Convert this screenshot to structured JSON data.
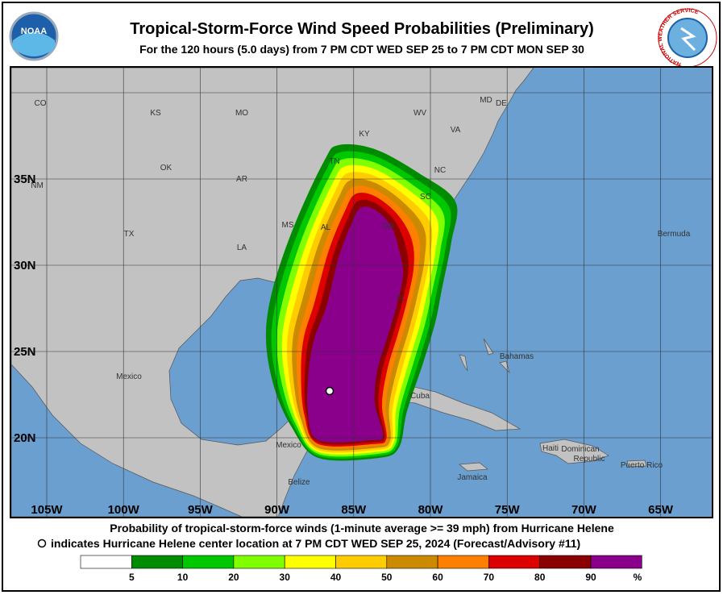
{
  "header": {
    "title": "Tropical-Storm-Force Wind Speed Probabilities (Preliminary)",
    "subtitle": "For the 120 hours (5.0 days) from 7 PM CDT WED SEP 25 to 7 PM CDT MON SEP 30",
    "left_logo_text": "NOAA",
    "right_logo_text": "NATIONAL WEATHER SERVICE"
  },
  "map": {
    "lat_labels": [
      "35N",
      "30N",
      "25N",
      "20N"
    ],
    "lon_labels": [
      "105W",
      "100W",
      "95W",
      "90W",
      "85W",
      "80W",
      "75W",
      "70W",
      "65W"
    ],
    "labels": [
      "CO",
      "KS",
      "MO",
      "KY",
      "WV",
      "VA",
      "MD",
      "DE",
      "OK",
      "AR",
      "TN",
      "NC",
      "SC",
      "NM",
      "TX",
      "LA",
      "MS",
      "AL",
      "GA",
      "FL",
      "Bermuda",
      "Bahamas",
      "Mexico",
      "Mexico",
      "Cuba",
      "Belize",
      "Jamaica",
      "Haiti",
      "Dominican",
      "Republic",
      "Puerto Rico"
    ]
  },
  "footer": {
    "line1": "Probability of tropical-storm-force winds (1-minute average >= 39 mph) from Hurricane Helene",
    "line2": "indicates Hurricane Helene center location at 7 PM CDT WED SEP 25, 2024 (Forecast/Advisory #11)"
  },
  "legend": {
    "colors": [
      "#ffffff",
      "#008c00",
      "#00c800",
      "#7fff00",
      "#ffff00",
      "#ffcc00",
      "#cc8a00",
      "#ff8000",
      "#dd0000",
      "#8b0000",
      "#8b008b"
    ],
    "labels": [
      "5",
      "10",
      "20",
      "30",
      "40",
      "50",
      "60",
      "70",
      "80",
      "90",
      "%"
    ]
  }
}
